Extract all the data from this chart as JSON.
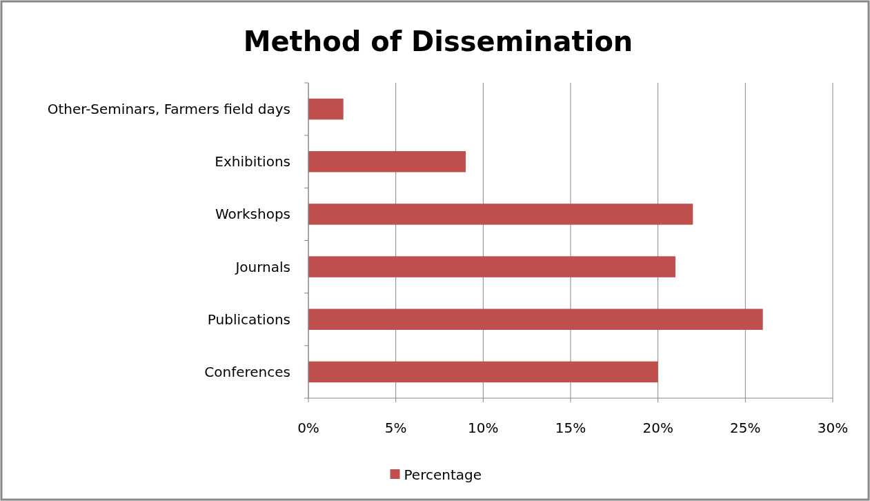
{
  "chart_data": {
    "type": "bar",
    "orientation": "horizontal",
    "title": "Method of Dissemination",
    "categories": [
      "Other-Seminars, Farmers field days",
      "Exhibitions",
      "Workshops",
      "Journals",
      "Publications",
      "Conferences"
    ],
    "series": [
      {
        "name": "Percentage",
        "color": "#c0504d",
        "values": [
          2,
          9,
          22,
          21,
          26,
          20
        ]
      }
    ],
    "xlim": [
      0,
      30
    ],
    "xticks": [
      {
        "value": 0,
        "label": "0%"
      },
      {
        "value": 5,
        "label": "5%"
      },
      {
        "value": 10,
        "label": "10%"
      },
      {
        "value": 15,
        "label": "15%"
      },
      {
        "value": 20,
        "label": "20%"
      },
      {
        "value": 25,
        "label": "25%"
      },
      {
        "value": 30,
        "label": "30%"
      }
    ],
    "grid": "x",
    "legend": "bottom"
  }
}
